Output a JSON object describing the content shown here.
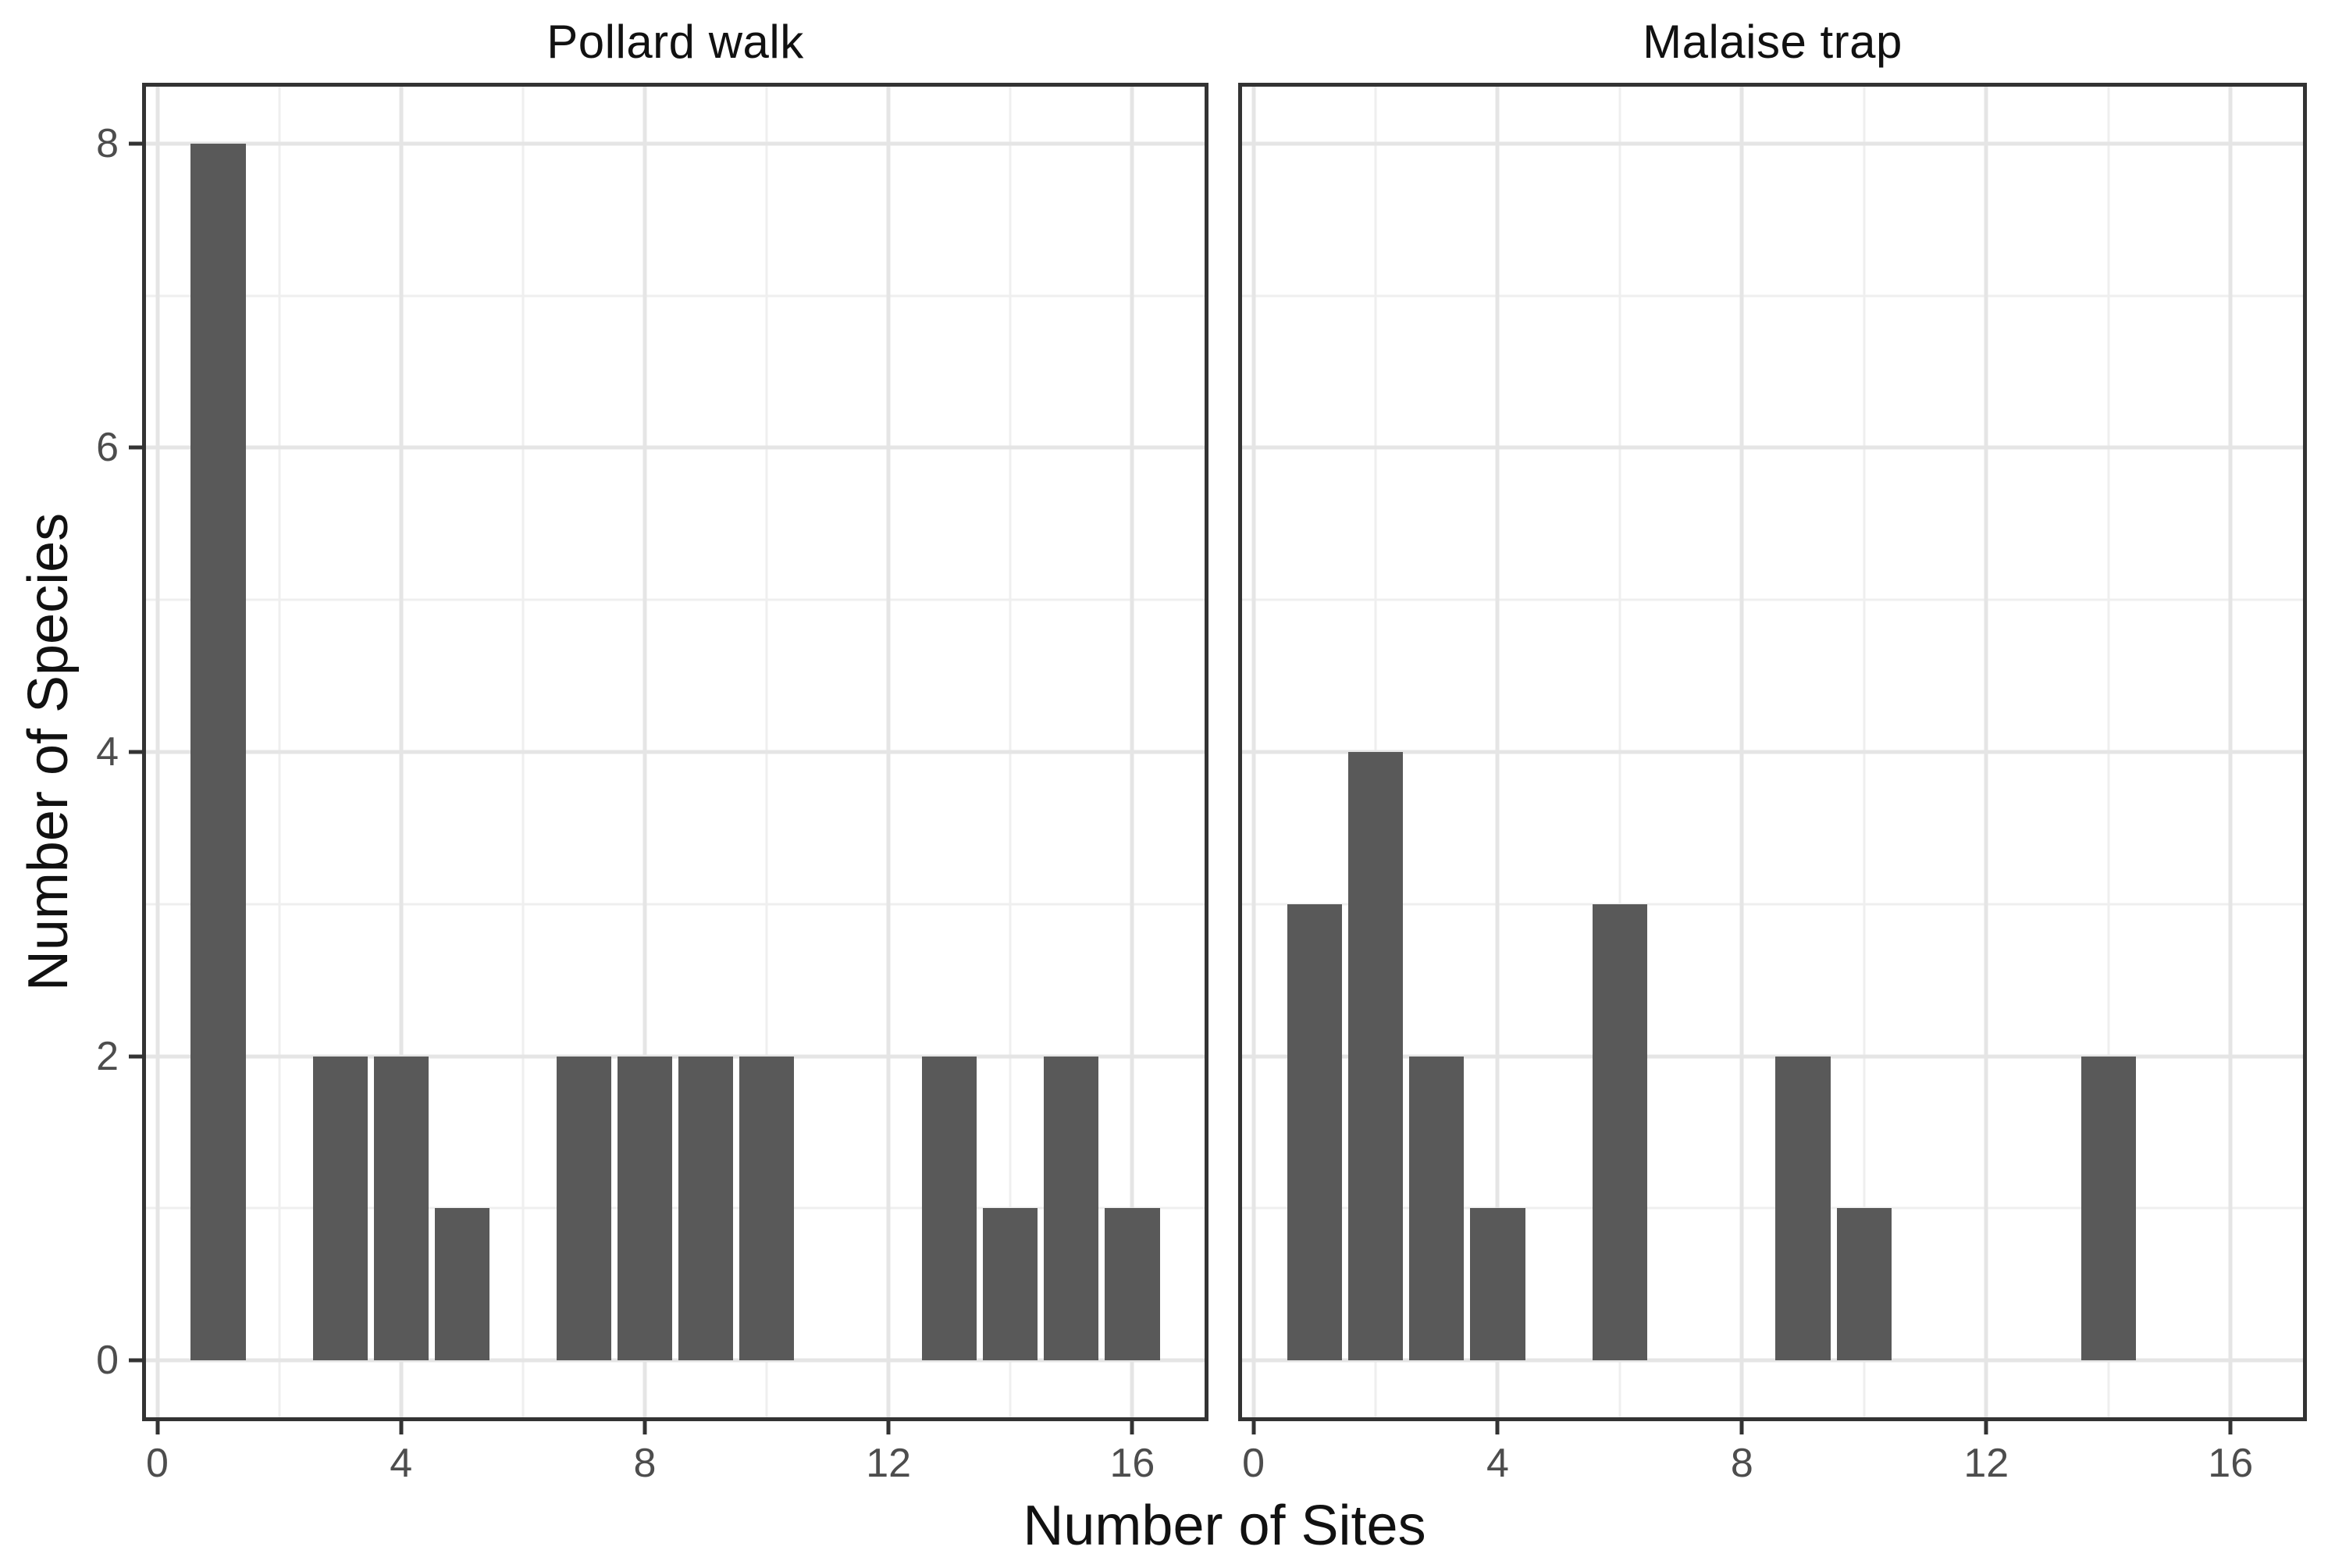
{
  "chart_data": {
    "type": "bar",
    "subtype": "faceted-histogram",
    "xlabel": "Number of Sites",
    "ylabel": "Number of Species",
    "facets": [
      {
        "title": "Pollard walk",
        "x": [
          1,
          3,
          4,
          5,
          7,
          8,
          9,
          10,
          13,
          14,
          15,
          16
        ],
        "counts": [
          8,
          2,
          2,
          1,
          2,
          2,
          2,
          2,
          2,
          1,
          2,
          1
        ]
      },
      {
        "title": "Malaise trap",
        "x": [
          1,
          2,
          3,
          4,
          6,
          9,
          10,
          14
        ],
        "counts": [
          3,
          4,
          2,
          1,
          3,
          2,
          1,
          2
        ]
      }
    ],
    "bar_width": 0.9,
    "x_major_ticks": [
      0,
      4,
      8,
      12,
      16
    ],
    "x_minor_ticks": [
      2,
      6,
      10,
      14
    ],
    "y_major_ticks": [
      0,
      2,
      4,
      6,
      8
    ],
    "y_minor_ticks": [
      1,
      3,
      5,
      7
    ],
    "xlim": [
      -0.25,
      17.25
    ],
    "ylim": [
      -0.4,
      8.4
    ],
    "grid": "major+minor",
    "legend": "none",
    "colors": {
      "bar": "#595959",
      "grid_major": "#e5e5e5",
      "grid_minor": "#efefef",
      "panel_border": "#333333",
      "tick_mark": "#333333",
      "tick_label": "#4d4d4d",
      "title_text": "#111111",
      "background": "#ffffff"
    }
  }
}
